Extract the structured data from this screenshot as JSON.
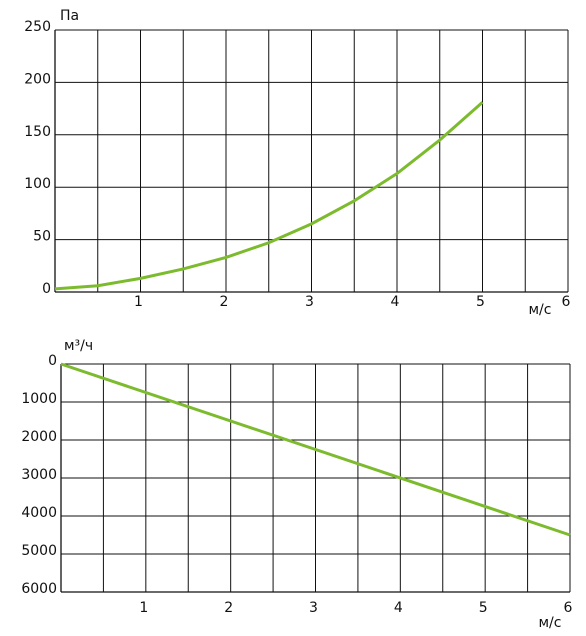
{
  "chart_data": [
    {
      "type": "line",
      "y_label": "Па",
      "x_label": "м/с",
      "x": [
        0,
        0.5,
        1,
        1.5,
        2,
        2.5,
        3,
        3.5,
        4,
        4.5,
        5
      ],
      "series": [
        {
          "color": "#7dbb2e",
          "values": [
            3,
            6,
            13,
            22,
            33,
            47,
            65,
            87,
            113,
            145,
            181
          ]
        }
      ],
      "xlim": [
        0,
        6
      ],
      "xticks": [
        1,
        2,
        3,
        4,
        5,
        6
      ],
      "x_minor_grid": [
        0.5,
        1.5,
        2.5,
        3.5,
        4.5,
        5.5
      ],
      "ylim": [
        0,
        250
      ],
      "yticks": [
        0,
        50,
        100,
        150,
        200,
        250
      ],
      "y_inverted": false,
      "grid": true
    },
    {
      "type": "line",
      "y_label": "м³/ч",
      "x_label": "м/с",
      "x": [
        0,
        6
      ],
      "series": [
        {
          "color": "#7dbb2e",
          "values": [
            0,
            4500
          ]
        }
      ],
      "xlim": [
        0,
        6
      ],
      "xticks": [
        1,
        2,
        3,
        4,
        5,
        6
      ],
      "x_minor_grid": [
        0.5,
        1.5,
        2.5,
        3.5,
        4.5,
        5.5
      ],
      "ylim": [
        0,
        6000
      ],
      "yticks": [
        0,
        1000,
        2000,
        3000,
        4000,
        5000,
        6000
      ],
      "y_inverted": true,
      "grid": true
    }
  ]
}
